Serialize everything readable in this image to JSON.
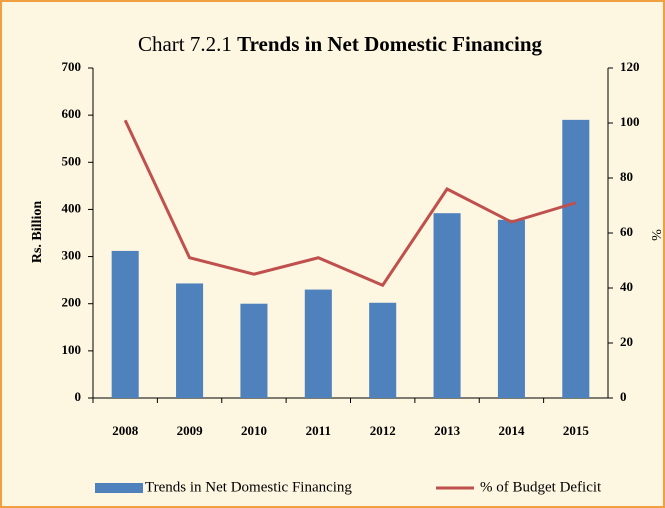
{
  "chart_data": {
    "type": "bar_line",
    "title_number": "Chart 7.2.1",
    "title": "Trends in Net Domestic Financing",
    "y_label": "Rs. Billion",
    "y2_label": "%",
    "categories": [
      "2008",
      "2009",
      "2010",
      "2011",
      "2012",
      "2013",
      "2014",
      "2015"
    ],
    "series": [
      {
        "name": "Trends in Net Domestic Financing",
        "color": "#4f81bd",
        "kind": "bar",
        "values": [
          312,
          243,
          200,
          230,
          202,
          392,
          378,
          590
        ]
      },
      {
        "name": "% of Budget Deficit",
        "color": "#c0504d",
        "kind": "line",
        "axis": "y2",
        "values": [
          101,
          51,
          45,
          51,
          41,
          76,
          64,
          71
        ]
      }
    ],
    "ylim": [
      0,
      700
    ],
    "yticks": [
      0,
      100,
      200,
      300,
      400,
      500,
      600,
      700
    ],
    "y2lim": [
      0,
      120
    ],
    "y2ticks": [
      0,
      20,
      40,
      60,
      80,
      100,
      120
    ],
    "legend": "bottom"
  }
}
